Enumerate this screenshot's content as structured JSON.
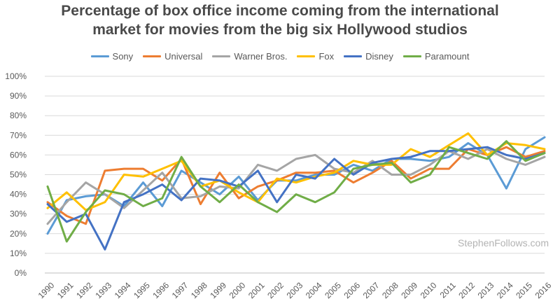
{
  "chart_data": {
    "type": "line",
    "title_line1": "Percentage of box office income coming from the international",
    "title_line2": "market for movies from the big six Hollywood studios",
    "watermark": "StephenFollows.com",
    "legend_position": "top",
    "grid": true,
    "ylim": [
      0,
      100
    ],
    "y_tick_values": [
      0,
      10,
      20,
      30,
      40,
      50,
      60,
      70,
      80,
      90,
      100
    ],
    "y_tick_labels": [
      "0%",
      "10%",
      "20%",
      "30%",
      "40%",
      "50%",
      "60%",
      "70%",
      "80%",
      "90%",
      "100%"
    ],
    "x": [
      "1990",
      "1991",
      "1992",
      "1993",
      "1994",
      "1995",
      "1996",
      "1997",
      "1998",
      "1999",
      "2000",
      "2001",
      "2002",
      "2003",
      "2004",
      "2005",
      "2006",
      "2007",
      "2008",
      "2009",
      "2010",
      "2011",
      "2012",
      "2013",
      "2014",
      "2015",
      "2016"
    ],
    "series": [
      {
        "name": "Sony",
        "color": "#5b9bd5",
        "values": [
          20,
          37,
          39,
          40,
          34,
          46,
          34,
          52,
          46,
          40,
          49,
          37,
          47,
          47,
          50,
          50,
          55,
          52,
          58,
          58,
          57,
          59,
          66,
          60,
          43,
          63,
          69
        ]
      },
      {
        "name": "Universal",
        "color": "#ed7d31",
        "values": [
          36,
          29,
          25,
          52,
          53,
          53,
          47,
          58,
          35,
          51,
          38,
          44,
          47,
          51,
          51,
          52,
          46,
          51,
          57,
          48,
          53,
          53,
          63,
          60,
          64,
          59,
          62
        ]
      },
      {
        "name": "Warner Bros.",
        "color": "#a5a5a5",
        "values": [
          25,
          36,
          46,
          40,
          33,
          42,
          51,
          38,
          39,
          44,
          43,
          55,
          52,
          58,
          60,
          53,
          51,
          57,
          50,
          50,
          55,
          62,
          58,
          63,
          58,
          55,
          59
        ]
      },
      {
        "name": "Fox",
        "color": "#ffc000",
        "values": [
          33,
          41,
          32,
          36,
          50,
          49,
          53,
          57,
          44,
          47,
          41,
          36,
          48,
          46,
          49,
          51,
          57,
          55,
          55,
          63,
          59,
          65,
          71,
          60,
          66,
          65,
          63
        ]
      },
      {
        "name": "Disney",
        "color": "#4472c4",
        "values": [
          35,
          26,
          30,
          12,
          36,
          40,
          45,
          37,
          48,
          47,
          44,
          52,
          36,
          50,
          48,
          58,
          50,
          56,
          58,
          59,
          62,
          62,
          63,
          64,
          60,
          58,
          61
        ]
      },
      {
        "name": "Paramount",
        "color": "#70ad47",
        "values": [
          44,
          16,
          31,
          42,
          40,
          34,
          38,
          59,
          44,
          36,
          45,
          36,
          31,
          40,
          36,
          41,
          53,
          55,
          56,
          46,
          50,
          64,
          61,
          58,
          67,
          57,
          61
        ]
      }
    ]
  }
}
